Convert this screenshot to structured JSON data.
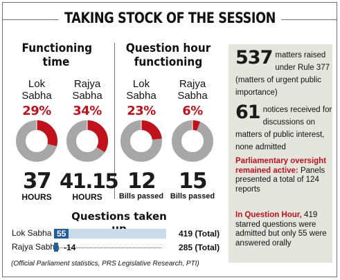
{
  "title": "TAKING STOCK OF THE SESSION",
  "functioning_time": {
    "heading": "Functioning time",
    "houses": [
      {
        "house_line1": "Lok",
        "house_line2": "Sabha",
        "percent_label": "29%",
        "percent": 29,
        "value": "37",
        "unit": "HOURS"
      },
      {
        "house_line1": "Rajya",
        "house_line2": "Sabha",
        "percent_label": "34%",
        "percent": 34,
        "value": "41.15",
        "unit": "HOURS"
      }
    ]
  },
  "question_hour": {
    "heading_line1": "Question hour",
    "heading_line2": "functioning",
    "houses": [
      {
        "house_line1": "Lok",
        "house_line2": "Sabha",
        "percent_label": "23%",
        "percent": 23,
        "value": "12",
        "unit": "Bills passed"
      },
      {
        "house_line1": "Rajya",
        "house_line2": "Sabha",
        "percent_label": "6%",
        "percent": 6,
        "value": "15",
        "unit": "Bills passed"
      }
    ]
  },
  "questions_taken_up": {
    "heading": "Questions taken up",
    "rows": [
      {
        "label": "Lok Sabha",
        "answered": 55,
        "answered_label": "55",
        "total": 419,
        "total_label": "419",
        "total_suffix": "(Total)"
      },
      {
        "label": "Rajya Sabha",
        "answered": 14,
        "answered_label": "14",
        "total": 285,
        "total_label": "285",
        "total_suffix": "(Total)"
      }
    ]
  },
  "source": "(Official Parliament statistics, PRS Legislative Research, PTI)",
  "sidebar": {
    "stat1_number": "537",
    "stat1_text": "matters raised under Rule 377 (matters of urgent public importance)",
    "stat2_number": "61",
    "stat2_text": "notices received for discussions on matters of public interest, none admitted",
    "note1_highlight": "Parliamentary oversight remained active:",
    "note1_text": "Panels presented a total of 124 reports",
    "note2_highlight": "In Question Hour,",
    "note2_text": "419 starred questions were admitted but only 55 were answered orally"
  },
  "colors": {
    "accent_red": "#c1121c",
    "donut_grey": "#a7a7a7",
    "bar_blue": "#1f5f9c",
    "bar_light": "#c9dcec",
    "panel_bg": "#e4e5dd"
  }
}
